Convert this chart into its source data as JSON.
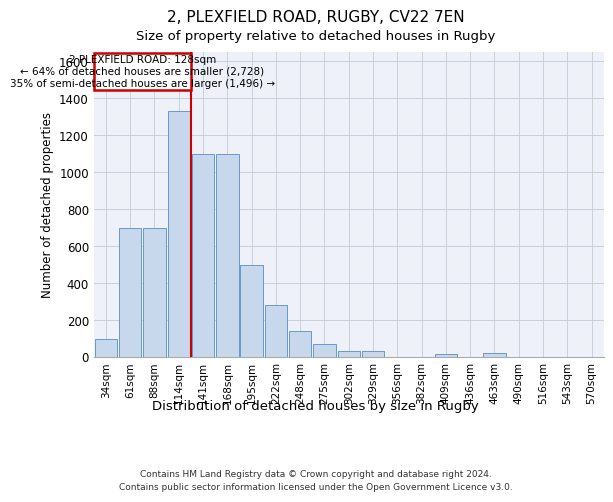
{
  "title1": "2, PLEXFIELD ROAD, RUGBY, CV22 7EN",
  "title2": "Size of property relative to detached houses in Rugby",
  "xlabel": "Distribution of detached houses by size in Rugby",
  "ylabel": "Number of detached properties",
  "categories": [
    "34sqm",
    "61sqm",
    "88sqm",
    "114sqm",
    "141sqm",
    "168sqm",
    "195sqm",
    "222sqm",
    "248sqm",
    "275sqm",
    "302sqm",
    "329sqm",
    "356sqm",
    "382sqm",
    "409sqm",
    "436sqm",
    "463sqm",
    "490sqm",
    "516sqm",
    "543sqm",
    "570sqm"
  ],
  "values": [
    95,
    700,
    700,
    1330,
    1100,
    1100,
    500,
    280,
    140,
    70,
    35,
    35,
    0,
    0,
    15,
    0,
    20,
    0,
    0,
    0,
    0
  ],
  "bar_color": "#c8d8ec",
  "bar_edge_color": "#6699cc",
  "grid_color": "#c8d0dc",
  "background_color": "#eef2f8",
  "annotation_box_color": "#cc0000",
  "marker_label": "2 PLEXFIELD ROAD: 128sqm",
  "annotation_line1": "← 64% of detached houses are smaller (2,728)",
  "annotation_line2": "35% of semi-detached houses are larger (1,496) →",
  "ylim": [
    0,
    1650
  ],
  "yticks": [
    0,
    200,
    400,
    600,
    800,
    1000,
    1200,
    1400,
    1600
  ],
  "footer1": "Contains HM Land Registry data © Crown copyright and database right 2024.",
  "footer2": "Contains public sector information licensed under the Open Government Licence v3.0."
}
